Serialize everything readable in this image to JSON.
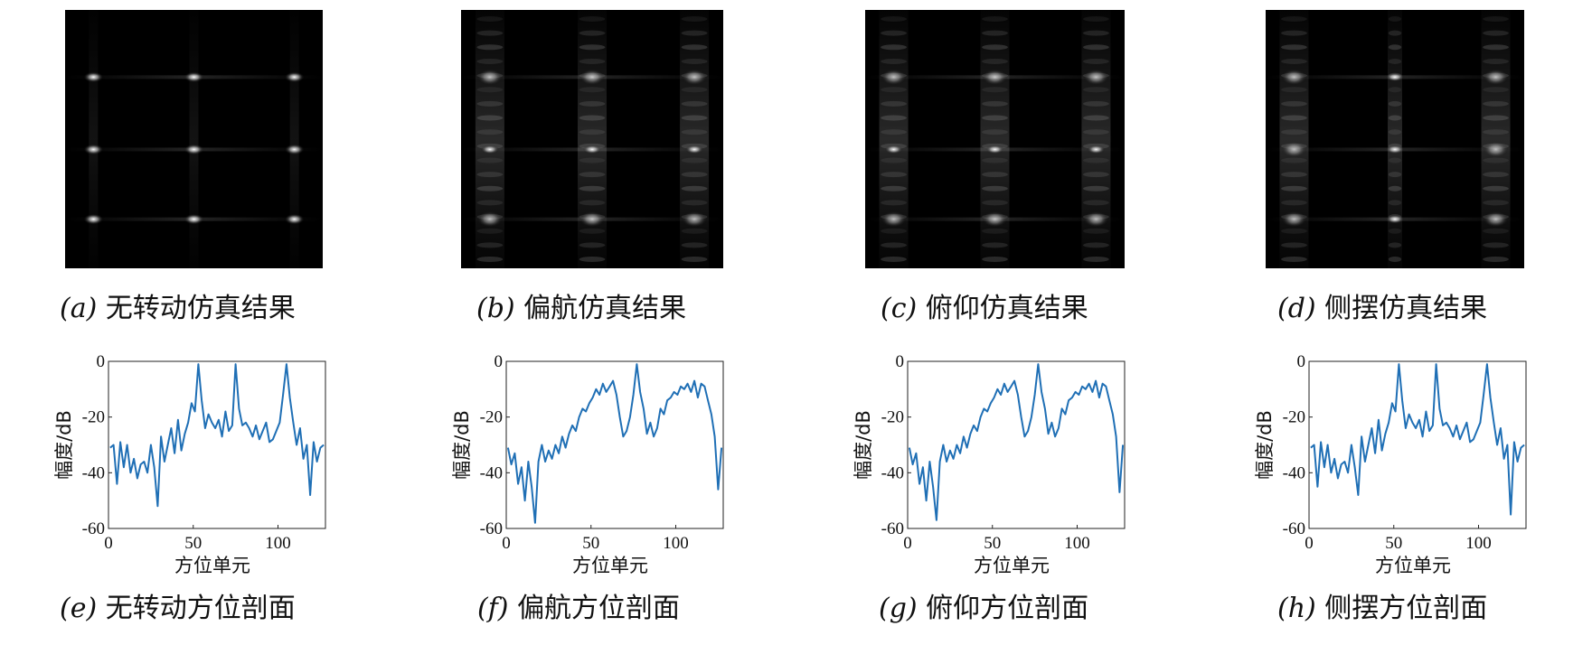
{
  "images": [
    {
      "label": "(a)",
      "caption": "无转动仿真结果",
      "mode": "none"
    },
    {
      "label": "(b)",
      "caption": "偏航仿真结果",
      "mode": "yaw"
    },
    {
      "label": "(c)",
      "caption": "俯仰仿真结果",
      "mode": "pitch"
    },
    {
      "label": "(d)",
      "caption": "侧摆仿真结果",
      "mode": "roll"
    }
  ],
  "profiles": [
    {
      "label": "(e)",
      "caption": "无转动方位剖面"
    },
    {
      "label": "(f)",
      "caption": "偏航方位剖面"
    },
    {
      "label": "(g)",
      "caption": "俯仰方位剖面"
    },
    {
      "label": "(h)",
      "caption": "侧摆方位剖面"
    }
  ],
  "colors": {
    "line": "#1f6fb5",
    "background": "#ffffff",
    "image_bg": "#000000"
  },
  "chart_data": [
    {
      "type": "line",
      "xlabel": "方位单元",
      "ylabel": "幅度/dB",
      "xlim": [
        0,
        128
      ],
      "ylim": [
        -60,
        0
      ],
      "xticks": [
        0,
        50,
        100
      ],
      "yticks": [
        0,
        -20,
        -40,
        -60
      ],
      "grid": false,
      "x": [
        1,
        3,
        5,
        7,
        9,
        11,
        13,
        15,
        17,
        19,
        21,
        23,
        25,
        27,
        29,
        31,
        33,
        35,
        37,
        39,
        41,
        43,
        45,
        47,
        49,
        51,
        53,
        55,
        57,
        59,
        61,
        63,
        65,
        67,
        69,
        71,
        73,
        75,
        77,
        79,
        81,
        83,
        85,
        87,
        89,
        91,
        93,
        95,
        97,
        99,
        101,
        103,
        105,
        107,
        109,
        111,
        113,
        115,
        117,
        119,
        121,
        123,
        125,
        127
      ],
      "values": [
        -31,
        -30,
        -44,
        -29,
        -38,
        -30,
        -40,
        -35,
        -42,
        -37,
        -36,
        -40,
        -30,
        -38,
        -52,
        -27,
        -36,
        -30,
        -24,
        -33,
        -21,
        -32,
        -26,
        -22,
        -15,
        -18,
        -1,
        -14,
        -24,
        -19,
        -22,
        -24,
        -21,
        -27,
        -18,
        -25,
        -23,
        -1,
        -17,
        -23,
        -22,
        -24,
        -27,
        -23,
        -28,
        -25,
        -22,
        -29,
        -28,
        -25,
        -22,
        -12,
        -1,
        -13,
        -22,
        -30,
        -24,
        -35,
        -30,
        -48,
        -29,
        -36,
        -31,
        -30
      ]
    },
    {
      "type": "line",
      "xlabel": "方位单元",
      "ylabel": "幅度/dB",
      "xlim": [
        0,
        128
      ],
      "ylim": [
        -60,
        0
      ],
      "xticks": [
        0,
        50,
        100
      ],
      "yticks": [
        0,
        -20,
        -40,
        -60
      ],
      "grid": false,
      "x": [
        1,
        3,
        5,
        7,
        9,
        11,
        13,
        15,
        17,
        19,
        21,
        23,
        25,
        27,
        29,
        31,
        33,
        35,
        37,
        39,
        41,
        43,
        45,
        47,
        49,
        51,
        53,
        55,
        57,
        59,
        61,
        63,
        65,
        67,
        69,
        71,
        73,
        75,
        77,
        79,
        81,
        83,
        85,
        87,
        89,
        91,
        93,
        95,
        97,
        99,
        101,
        103,
        105,
        107,
        109,
        111,
        113,
        115,
        117,
        119,
        121,
        123,
        125,
        127
      ],
      "values": [
        -31,
        -37,
        -33,
        -44,
        -38,
        -50,
        -36,
        -45,
        -58,
        -36,
        -30,
        -36,
        -32,
        -35,
        -30,
        -33,
        -27,
        -31,
        -26,
        -23,
        -25,
        -20,
        -17,
        -18,
        -15,
        -13,
        -10,
        -12,
        -8,
        -11,
        -9,
        -7,
        -12,
        -20,
        -27,
        -25,
        -20,
        -12,
        -1,
        -11,
        -17,
        -26,
        -22,
        -27,
        -24,
        -17,
        -19,
        -14,
        -13,
        -11,
        -12,
        -9,
        -10,
        -8,
        -11,
        -7,
        -13,
        -8,
        -9,
        -14,
        -19,
        -27,
        -46,
        -31
      ]
    },
    {
      "type": "line",
      "xlabel": "方位单元",
      "ylabel": "幅度/dB",
      "xlim": [
        0,
        128
      ],
      "ylim": [
        -60,
        0
      ],
      "xticks": [
        0,
        50,
        100
      ],
      "yticks": [
        0,
        -20,
        -40,
        -60
      ],
      "grid": false,
      "x": [
        1,
        3,
        5,
        7,
        9,
        11,
        13,
        15,
        17,
        19,
        21,
        23,
        25,
        27,
        29,
        31,
        33,
        35,
        37,
        39,
        41,
        43,
        45,
        47,
        49,
        51,
        53,
        55,
        57,
        59,
        61,
        63,
        65,
        67,
        69,
        71,
        73,
        75,
        77,
        79,
        81,
        83,
        85,
        87,
        89,
        91,
        93,
        95,
        97,
        99,
        101,
        103,
        105,
        107,
        109,
        111,
        113,
        115,
        117,
        119,
        121,
        123,
        125,
        127
      ],
      "values": [
        -31,
        -37,
        -33,
        -44,
        -38,
        -50,
        -36,
        -45,
        -57,
        -36,
        -30,
        -36,
        -32,
        -35,
        -30,
        -33,
        -27,
        -31,
        -26,
        -23,
        -25,
        -20,
        -17,
        -18,
        -15,
        -13,
        -10,
        -12,
        -8,
        -11,
        -9,
        -7,
        -12,
        -20,
        -27,
        -25,
        -20,
        -12,
        -1,
        -11,
        -17,
        -26,
        -22,
        -27,
        -24,
        -17,
        -19,
        -14,
        -13,
        -11,
        -12,
        -9,
        -10,
        -8,
        -11,
        -7,
        -13,
        -8,
        -9,
        -14,
        -19,
        -27,
        -47,
        -30
      ]
    },
    {
      "type": "line",
      "xlabel": "方位单元",
      "ylabel": "幅度/dB",
      "xlim": [
        0,
        128
      ],
      "ylim": [
        -60,
        0
      ],
      "xticks": [
        0,
        50,
        100
      ],
      "yticks": [
        0,
        -20,
        -40,
        -60
      ],
      "grid": false,
      "x": [
        1,
        3,
        5,
        7,
        9,
        11,
        13,
        15,
        17,
        19,
        21,
        23,
        25,
        27,
        29,
        31,
        33,
        35,
        37,
        39,
        41,
        43,
        45,
        47,
        49,
        51,
        53,
        55,
        57,
        59,
        61,
        63,
        65,
        67,
        69,
        71,
        73,
        75,
        77,
        79,
        81,
        83,
        85,
        87,
        89,
        91,
        93,
        95,
        97,
        99,
        101,
        103,
        105,
        107,
        109,
        111,
        113,
        115,
        117,
        119,
        121,
        123,
        125,
        127
      ],
      "values": [
        -31,
        -30,
        -45,
        -29,
        -38,
        -30,
        -40,
        -35,
        -42,
        -37,
        -36,
        -40,
        -30,
        -38,
        -48,
        -27,
        -36,
        -30,
        -24,
        -33,
        -21,
        -32,
        -26,
        -22,
        -15,
        -18,
        -1,
        -14,
        -24,
        -19,
        -22,
        -24,
        -21,
        -27,
        -18,
        -25,
        -23,
        -1,
        -17,
        -23,
        -22,
        -24,
        -27,
        -23,
        -28,
        -25,
        -22,
        -29,
        -28,
        -25,
        -22,
        -12,
        -1,
        -13,
        -22,
        -30,
        -24,
        -35,
        -30,
        -55,
        -29,
        -36,
        -31,
        -30
      ]
    }
  ]
}
